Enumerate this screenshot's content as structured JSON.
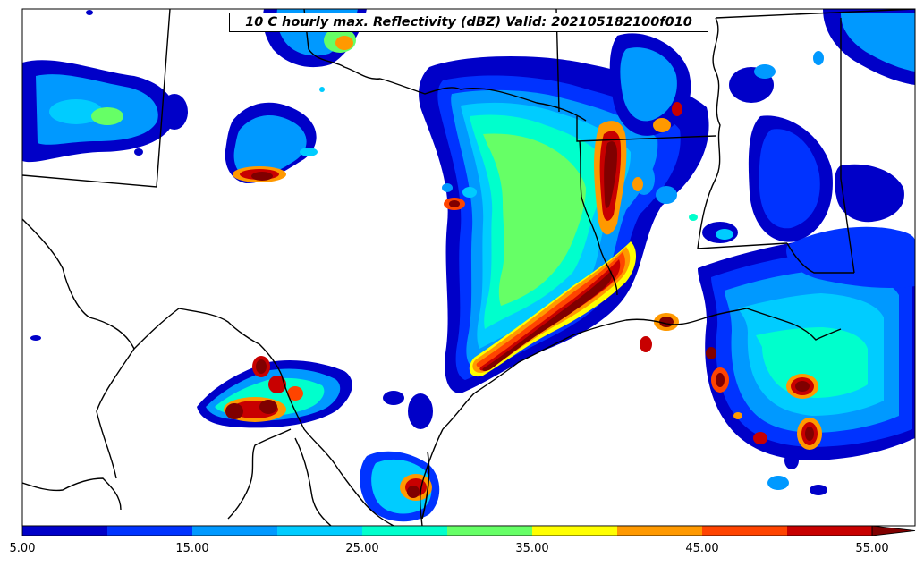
{
  "title": "10 C hourly max. Reflectivity (dBZ) Valid: 202105182100f010",
  "colorbar": {
    "ticks": [
      "5.00",
      "15.00",
      "25.00",
      "35.00",
      "45.00",
      "55.00"
    ],
    "extend": "max",
    "levels": [
      5,
      10,
      15,
      20,
      25,
      30,
      35,
      40,
      45,
      50,
      55
    ],
    "colors": [
      "#0000c8",
      "#0033ff",
      "#0099ff",
      "#00ccff",
      "#00ffcc",
      "#66ff66",
      "#ffff00",
      "#ff9900",
      "#ff4400",
      "#c80000",
      "#800000"
    ],
    "units": "dBZ"
  },
  "map": {
    "region": "Texas / Louisiana Gulf Coast",
    "features": [
      "state-borders",
      "coastline",
      "national-border",
      "rivers"
    ],
    "background": "#ffffff"
  }
}
